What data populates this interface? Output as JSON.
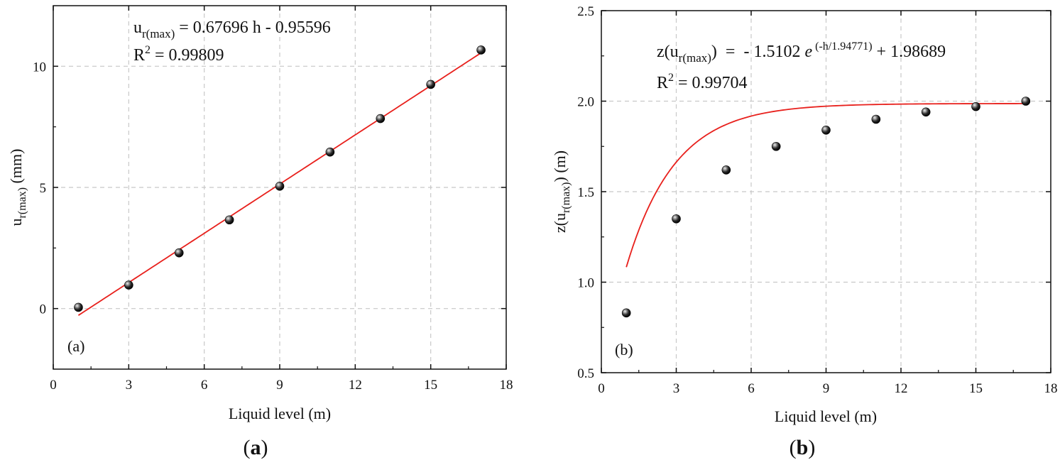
{
  "chart_data": [
    {
      "type": "scatter",
      "panel_tag": "(a)",
      "caption_letter": "a",
      "xlabel": "Liquid level (m)",
      "ylabel_main": "u",
      "ylabel_sub": "r(max)",
      "ylabel_unit": " (mm)",
      "xlim": [
        0,
        18
      ],
      "ylim": [
        -2.5,
        12.5
      ],
      "xticks": [
        0,
        3,
        6,
        9,
        12,
        15,
        18
      ],
      "yticks": [
        0,
        5,
        10
      ],
      "grid": true,
      "x": [
        1,
        3,
        5,
        7,
        9,
        11,
        13,
        15,
        17
      ],
      "y": [
        0.05,
        0.97,
        2.3,
        3.66,
        5.05,
        6.46,
        7.84,
        9.25,
        10.67
      ],
      "fit": {
        "model": "linear",
        "slope": 0.67696,
        "intercept": -0.95596,
        "color": "#e8201c"
      },
      "equation": {
        "lhs_main": "u",
        "lhs_sub": "r(max)",
        "rhs": " = 0.67696 h - 0.95596"
      },
      "r2": {
        "label": "R",
        "sup": "2",
        "value": " = 0.99809"
      }
    },
    {
      "type": "scatter",
      "panel_tag": "(b)",
      "caption_letter": "b",
      "xlabel": "Liquid level (m)",
      "ylabel_main": "z(u",
      "ylabel_sub": "r(max)",
      "ylabel_unit": ") (m)",
      "xlim": [
        0,
        18
      ],
      "ylim": [
        0.5,
        2.5
      ],
      "xticks": [
        0,
        3,
        6,
        9,
        12,
        15,
        18
      ],
      "yticks": [
        0.5,
        1.0,
        1.5,
        2.0,
        2.5
      ],
      "ytick_labels": [
        "0.5",
        "1.0",
        "1.5",
        "2.0",
        "2.5"
      ],
      "grid": true,
      "x": [
        1,
        3,
        5,
        7,
        9,
        11,
        13,
        15,
        17
      ],
      "y": [
        0.83,
        1.35,
        1.62,
        1.75,
        1.84,
        1.9,
        1.94,
        1.97,
        2.0
      ],
      "fit": {
        "model": "exp",
        "a": -1.5102,
        "t": 1.94771,
        "c": 1.98689,
        "color": "#e8201c"
      },
      "equation": {
        "lhs_main": "z(u",
        "lhs_sub": "r(max)",
        "lhs_close": ")",
        "mid": "  =  - 1.5102 ",
        "e": "e",
        "exp": " (-h/1.94771)",
        "tail": " + 1.98689"
      },
      "r2": {
        "label": "R",
        "sup": "2",
        "value": " = 0.99704"
      }
    }
  ]
}
